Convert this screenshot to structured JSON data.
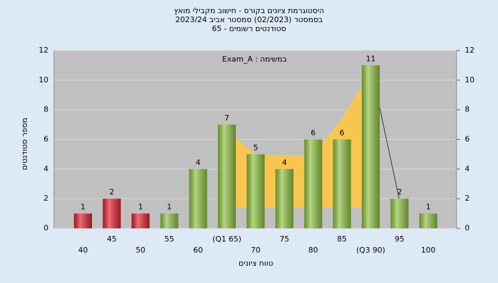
{
  "chart_data": {
    "type": "bar",
    "title": "היסטוגרמת ציונים בקורס - חישוב מקבילי מואץ",
    "subtitle": "בסמסטר  (02/2023)  סמסטר אביב 2023/24",
    "subtitle2": "סטודנטים רשומים - 65",
    "annotation": "Exam_A : במשימה",
    "x_label": "טווח ציונים",
    "y_label": "מספר סטודנטים",
    "categories": [
      "40",
      "45",
      "50",
      "55",
      "60",
      "(Q1 65)",
      "70",
      "75",
      "80",
      "85",
      "(Q3 90)",
      "95",
      "100"
    ],
    "values": [
      1,
      2,
      1,
      1,
      4,
      7,
      5,
      4,
      6,
      6,
      11,
      2,
      1
    ],
    "colors": [
      "#e02030",
      "#e02030",
      "#e02030",
      "#8cc040",
      "#8cc040",
      "#8cc040",
      "#8cc040",
      "#8cc040",
      "#8cc040",
      "#8cc040",
      "#8cc040",
      "#8cc040",
      "#8cc040"
    ],
    "ylim": [
      0,
      12
    ],
    "yticks": [
      0,
      2,
      4,
      6,
      8,
      10,
      12
    ],
    "y2lim": [
      0,
      12
    ],
    "y2ticks": [
      0,
      2,
      4,
      6,
      8,
      10,
      12
    ],
    "grid": true
  }
}
